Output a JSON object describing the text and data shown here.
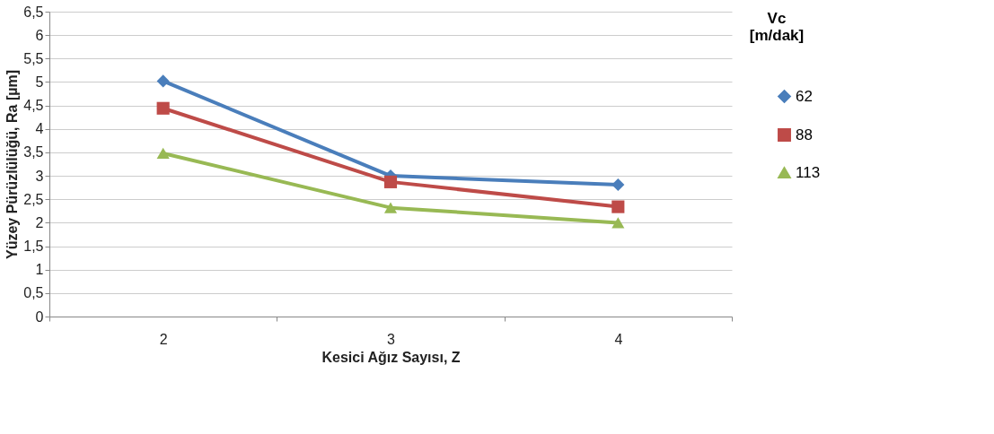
{
  "chart_data": {
    "type": "line",
    "xlabel": "Kesici Ağız Sayısı, Z",
    "ylabel": "Yüzey Pürüzlülüğü, Ra [µm]",
    "legend_title": "Vc [m/dak]",
    "legend": "right",
    "grid": "y",
    "line_style": "solid",
    "categories": [
      "2",
      "3",
      "4"
    ],
    "ylim": [
      0,
      6.5
    ],
    "yticks": [
      0,
      {
        "value": 0.5,
        "label": "0,5"
      },
      1,
      {
        "value": 1.5,
        "label": "1,5"
      },
      2,
      {
        "value": 2.5,
        "label": "2,5"
      },
      3,
      {
        "value": 3.5,
        "label": "3,5"
      },
      4,
      {
        "value": 4.5,
        "label": "4,5"
      },
      5,
      {
        "value": 5.5,
        "label": "5,5"
      },
      6,
      {
        "value": 6.5,
        "label": "6,5"
      }
    ],
    "series": [
      {
        "name": "62",
        "color": "#4a7ebb",
        "marker": "diamond",
        "values": [
          5.02,
          3.0,
          2.81
        ]
      },
      {
        "name": "88",
        "color": "#be4b48",
        "marker": "square",
        "values": [
          4.44,
          2.87,
          2.34
        ]
      },
      {
        "name": "113",
        "color": "#98b954",
        "marker": "triangle",
        "values": [
          3.48,
          2.32,
          2.0
        ]
      }
    ]
  }
}
